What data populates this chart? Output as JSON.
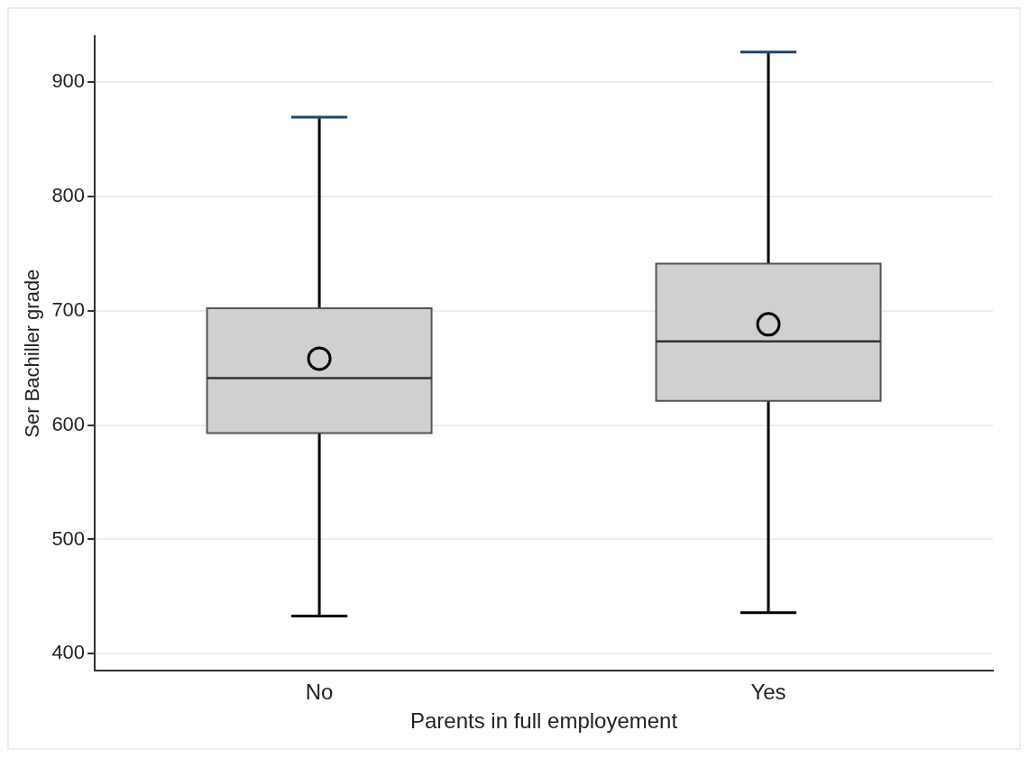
{
  "chart_data": {
    "type": "box",
    "xlabel": "Parents in full employement",
    "ylabel": "Ser Bachiller grade",
    "categories": [
      "No",
      "Yes"
    ],
    "boxes": [
      {
        "low": 433,
        "q1": 593,
        "median": 641,
        "q3": 702,
        "high": 869,
        "mean": 658
      },
      {
        "low": 436,
        "q1": 621,
        "median": 673,
        "q3": 741,
        "high": 926,
        "mean": 688
      }
    ],
    "color": "#d0d0d0",
    "ylim": [
      385,
      940
    ],
    "yticks": [
      400,
      500,
      600,
      700,
      800,
      900
    ],
    "grid": "y",
    "legend": false
  }
}
